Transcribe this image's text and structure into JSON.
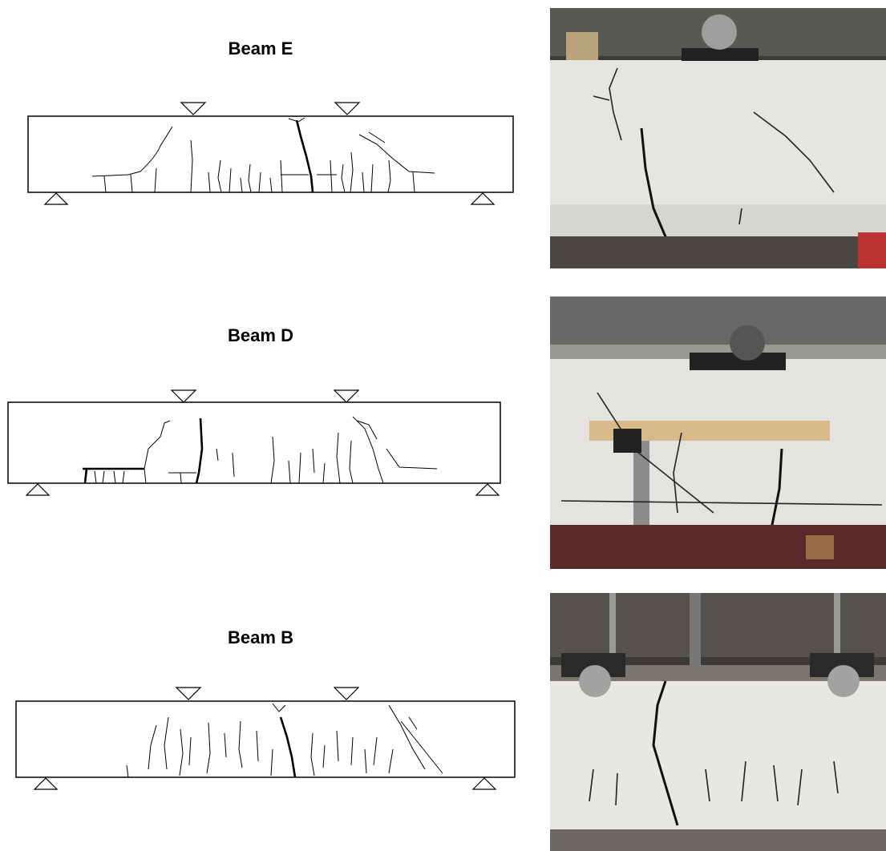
{
  "panels": [
    {
      "title": "Beam E"
    },
    {
      "title": "Beam D"
    },
    {
      "title": "Beam B"
    }
  ]
}
